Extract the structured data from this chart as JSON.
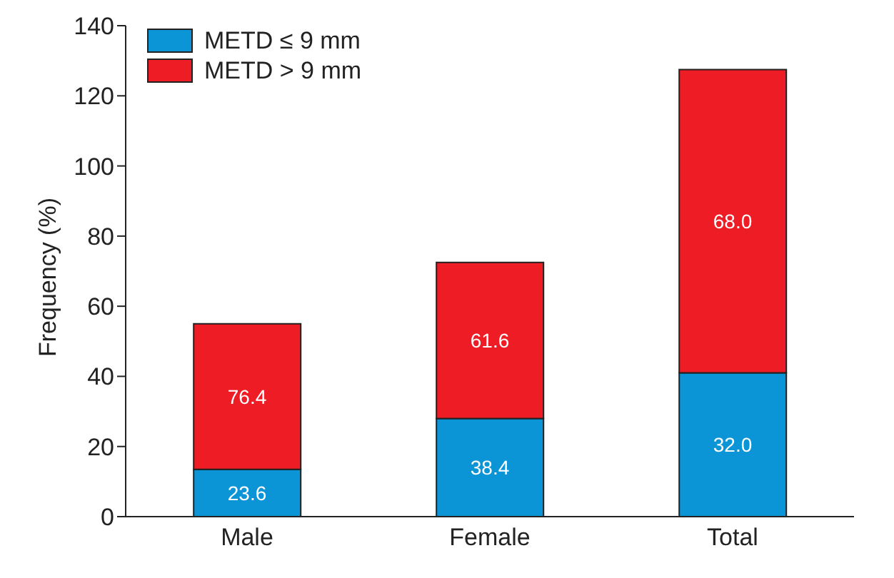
{
  "chart_data": {
    "type": "bar",
    "stacked": true,
    "ylabel": "Frequency (%)",
    "categories": [
      "Male",
      "Female",
      "Total"
    ],
    "series": [
      {
        "name": "METD ≤ 9 mm",
        "color": "#0b94d6",
        "values": [
          13.5,
          28,
          41
        ]
      },
      {
        "name": "METD > 9 mm",
        "color": "#ee1c25",
        "values": [
          41.5,
          44.5,
          86.5
        ]
      }
    ],
    "annotations": [
      "23.6",
      "38.4",
      "32.0",
      "76.4",
      "61.6",
      "68.0"
    ],
    "ylim": [
      0,
      140
    ],
    "yticks": [
      0,
      20,
      40,
      60,
      80,
      100,
      120,
      140
    ],
    "legend": "top left",
    "grid": false
  }
}
